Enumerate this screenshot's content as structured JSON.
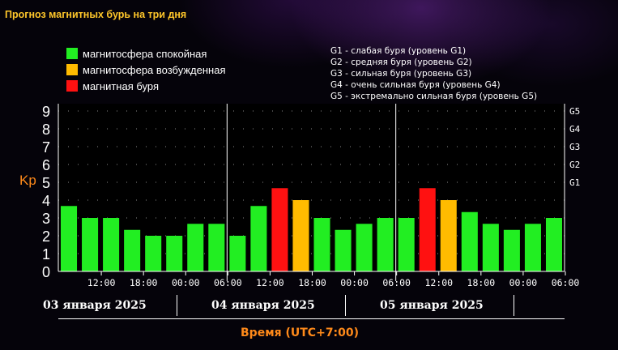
{
  "title": "Прогноз магнитных бурь на три дня",
  "legend": [
    {
      "label": "магнитосфера спокойная",
      "color": "#22ee22"
    },
    {
      "label": "магнитосфера возбужденная",
      "color": "#ffbb00"
    },
    {
      "label": "магнитная буря",
      "color": "#ff1111"
    }
  ],
  "g_scale": [
    "G1 - слабая буря (уровень G1)",
    "G2 - средняя буря (уровень G2)",
    "G3 - сильная буря (уровень G3)",
    "G4 - очень сильная буря (уровень G4)",
    "G5 - экстремально сильная буря (уровень G5)"
  ],
  "dates": [
    "03 января 2025",
    "04 января 2025",
    "05 января 2025"
  ],
  "chart_data": {
    "type": "bar",
    "title": "Прогноз магнитных бурь на три дня",
    "ylabel": "Kp",
    "xlabel": "Время (UTC+7:00)",
    "ylim": [
      0,
      9
    ],
    "yticks": [
      "0",
      "1",
      "2",
      "3",
      "4",
      "5",
      "6",
      "7",
      "8",
      "9"
    ],
    "right_labels": [
      {
        "value": 5,
        "label": "G1"
      },
      {
        "value": 6,
        "label": "G2"
      },
      {
        "value": 7,
        "label": "G3"
      },
      {
        "value": 8,
        "label": "G4"
      },
      {
        "value": 9,
        "label": "G5"
      }
    ],
    "xticks": [
      "12:00",
      "18:00",
      "00:00",
      "06:00",
      "12:00",
      "18:00",
      "00:00",
      "06:00",
      "12:00",
      "18:00",
      "00:00",
      "06:00"
    ],
    "values": [
      3.67,
      3.0,
      3.0,
      2.33,
      2.0,
      2.0,
      2.67,
      2.67,
      2.0,
      3.67,
      4.67,
      4.0,
      3.0,
      2.33,
      2.67,
      3.0,
      3.0,
      4.67,
      4.0,
      3.33,
      2.67,
      2.33,
      2.67,
      3.0
    ],
    "colors": [
      "#22ee22",
      "#22ee22",
      "#22ee22",
      "#22ee22",
      "#22ee22",
      "#22ee22",
      "#22ee22",
      "#22ee22",
      "#22ee22",
      "#22ee22",
      "#ff1111",
      "#ffbb00",
      "#22ee22",
      "#22ee22",
      "#22ee22",
      "#22ee22",
      "#22ee22",
      "#ff1111",
      "#ffbb00",
      "#22ee22",
      "#22ee22",
      "#22ee22",
      "#22ee22",
      "#22ee22"
    ]
  }
}
